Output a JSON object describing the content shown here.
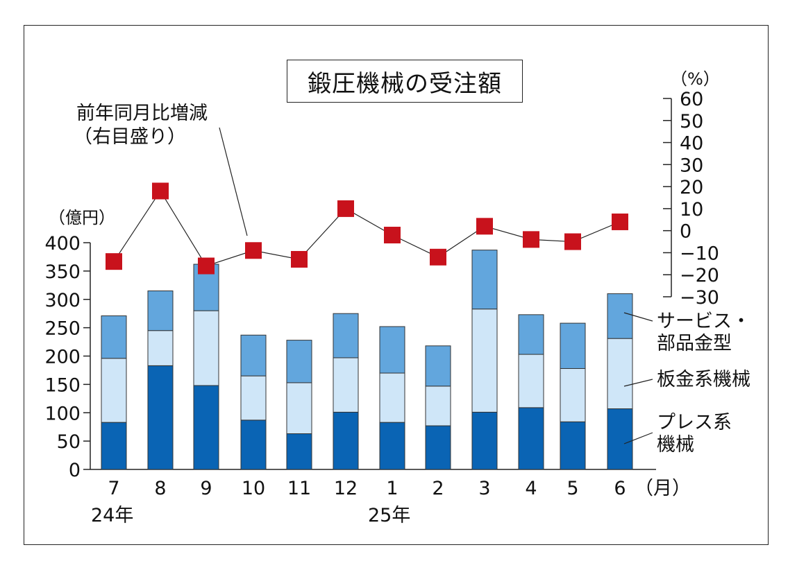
{
  "chart_data": {
    "type": "bar",
    "title": "鍛圧機械の受注額",
    "categories": [
      "7",
      "8",
      "9",
      "10",
      "11",
      "12",
      "1",
      "2",
      "3",
      "4",
      "5",
      "6"
    ],
    "year_labels": [
      "24年",
      "25年"
    ],
    "month_suffix": "（月）",
    "ylabel_left": "（億円）",
    "ylabel_right": "（%）",
    "ylim_left": [
      0,
      400
    ],
    "ylim_right": [
      -30,
      60
    ],
    "left_ticks": [
      "0",
      "50",
      "100",
      "150",
      "200",
      "250",
      "300",
      "350",
      "400"
    ],
    "right_ticks": [
      "60",
      "50",
      "40",
      "30",
      "20",
      "10",
      "0",
      "−10",
      "−20",
      "−30"
    ],
    "series": [
      {
        "name": "プレス系機械",
        "label_lines": [
          "プレス系",
          "機械"
        ],
        "color": "#0a64b4",
        "values": [
          83,
          183,
          148,
          87,
          63,
          101,
          83,
          77,
          101,
          109,
          84,
          107
        ]
      },
      {
        "name": "板金系機械",
        "label_lines": [
          "板金系機械"
        ],
        "color": "#cfe6f8",
        "values": [
          113,
          62,
          132,
          78,
          90,
          96,
          87,
          70,
          182,
          94,
          94,
          124
        ]
      },
      {
        "name": "サービス・部品金型",
        "label_lines": [
          "サービス・",
          "部品金型"
        ],
        "color": "#62a6dd",
        "values": [
          75,
          70,
          82,
          72,
          75,
          78,
          82,
          71,
          104,
          70,
          80,
          79
        ]
      }
    ],
    "line_series": {
      "name": "前年同月比増減",
      "label_lines": [
        "前年同月比増減",
        "（右目盛り）"
      ],
      "color": "#c8121c",
      "values": [
        -14,
        18,
        -16,
        -9,
        -13,
        10,
        -2,
        -12,
        2,
        -4,
        -5,
        4
      ]
    }
  }
}
